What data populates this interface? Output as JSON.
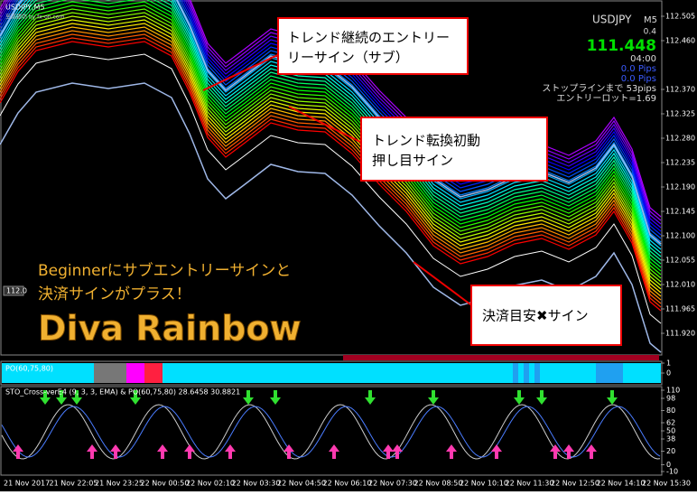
{
  "window": {
    "symbol_period": "USDJPY,M5",
    "watermark": "至高銀坊 by fx-on.com"
  },
  "info_panel": {
    "symbol": "USDJPY",
    "period": "M5",
    "spread": "0.4",
    "price": "111.448",
    "timer": "04:00",
    "pips_1": "0.0 Pips",
    "pips_2": "0.0 Pips",
    "stop_line": "ストップラインまで 53pips",
    "lot": "エントリーロット=1.69"
  },
  "callouts": [
    {
      "lines": [
        "トレンド継続のエントリー",
        "リーサイン（サブ）"
      ]
    },
    {
      "lines": [
        "トレンド転換初動",
        "押し目サイン"
      ]
    },
    {
      "lines": [
        "決済目安✖サイン"
      ]
    }
  ],
  "promo": {
    "line1": "Beginnerにサブエントリーサインと",
    "line2": "決済サインがプラス！",
    "title": "Diva Rainbow"
  },
  "price_axis": {
    "ylim": [
      111.885,
      112.535
    ],
    "ticks": [
      {
        "value": 112.505,
        "label": "112.505"
      },
      {
        "value": 112.46,
        "label": "112.460"
      },
      {
        "value": 112.37,
        "label": "112.370"
      },
      {
        "value": 112.325,
        "label": "112.325"
      },
      {
        "value": 112.28,
        "label": "112.280"
      },
      {
        "value": 112.235,
        "label": "112.235"
      },
      {
        "value": 112.19,
        "label": "112.190"
      },
      {
        "value": 112.145,
        "label": "112.145"
      },
      {
        "value": 112.1,
        "label": "112.100"
      },
      {
        "value": 112.055,
        "label": "112.055"
      },
      {
        "value": 112.01,
        "label": "112.010"
      },
      {
        "value": 111.965,
        "label": "111.965"
      },
      {
        "value": 111.92,
        "label": "111.920"
      }
    ],
    "marker": "112.0"
  },
  "po_pane": {
    "title": "PO(60,75,80)",
    "ylim": [
      -1,
      1
    ],
    "ticks": [
      1,
      0
    ]
  },
  "osc_pane": {
    "title": "STO_Cross-verE4 (9, 3, 3, EMA) & PO(60,75,80) 28.6458 30.8821",
    "ylim": [
      -10,
      110
    ],
    "ticks": [
      110,
      98,
      80,
      62,
      50,
      38,
      20,
      0,
      -10
    ]
  },
  "time_axis": [
    "21 Nov 2017",
    "21 Nov 22:05",
    "21 Nov 23:25",
    "22 Nov 00:50",
    "22 Nov 02:10",
    "22 Nov 03:30",
    "22 Nov 04:50",
    "22 Nov 06:10",
    "22 Nov 07:30",
    "22 Nov 08:50",
    "22 Nov 10:10",
    "22 Nov 11:30",
    "22 Nov 12:50",
    "22 Nov 14:10",
    "22 Nov 15:30"
  ]
}
